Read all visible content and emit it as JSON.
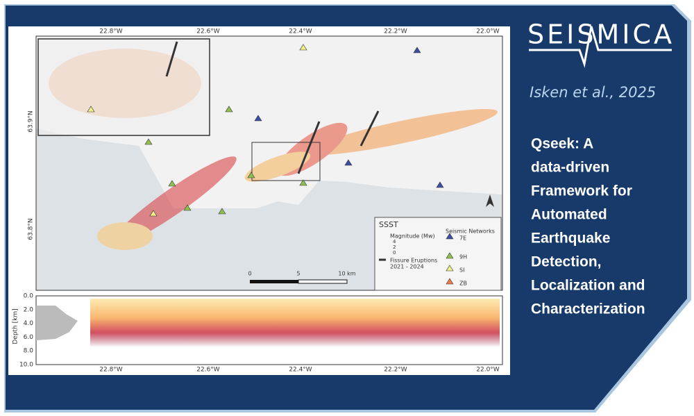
{
  "header": {
    "logo": "SEISMICA",
    "authors": "Isken et al., 2025",
    "title_lines": [
      "Qseek: A",
      "data-driven",
      "Framework for",
      "Automated",
      "Earthquake",
      "Detection,",
      "Localization and",
      "Characterization"
    ]
  },
  "figure": {
    "lon_labels": [
      "22.8°W",
      "22.6°W",
      "22.4°W",
      "22.2°W",
      "22.0°W"
    ],
    "lat_labels": [
      "63.9°N",
      "63.8°N"
    ],
    "legend": {
      "title": "SSST",
      "magnitude_title": "Magnitude (Mw)",
      "magnitudes": [
        "4",
        "2",
        "0"
      ],
      "fissure": "Fissure Eruptions",
      "fissure_years": "2021 - 2024",
      "networks_title": "Seismic Networks",
      "networks": [
        "7E",
        "9H",
        "SI",
        "ZB"
      ]
    },
    "scale": [
      "0",
      "5",
      "10 km"
    ],
    "depth_label": "Depth [km]",
    "depth_ticks": [
      "0.0",
      "2.0",
      "4.0",
      "6.0",
      "8.0",
      "10.0"
    ]
  }
}
